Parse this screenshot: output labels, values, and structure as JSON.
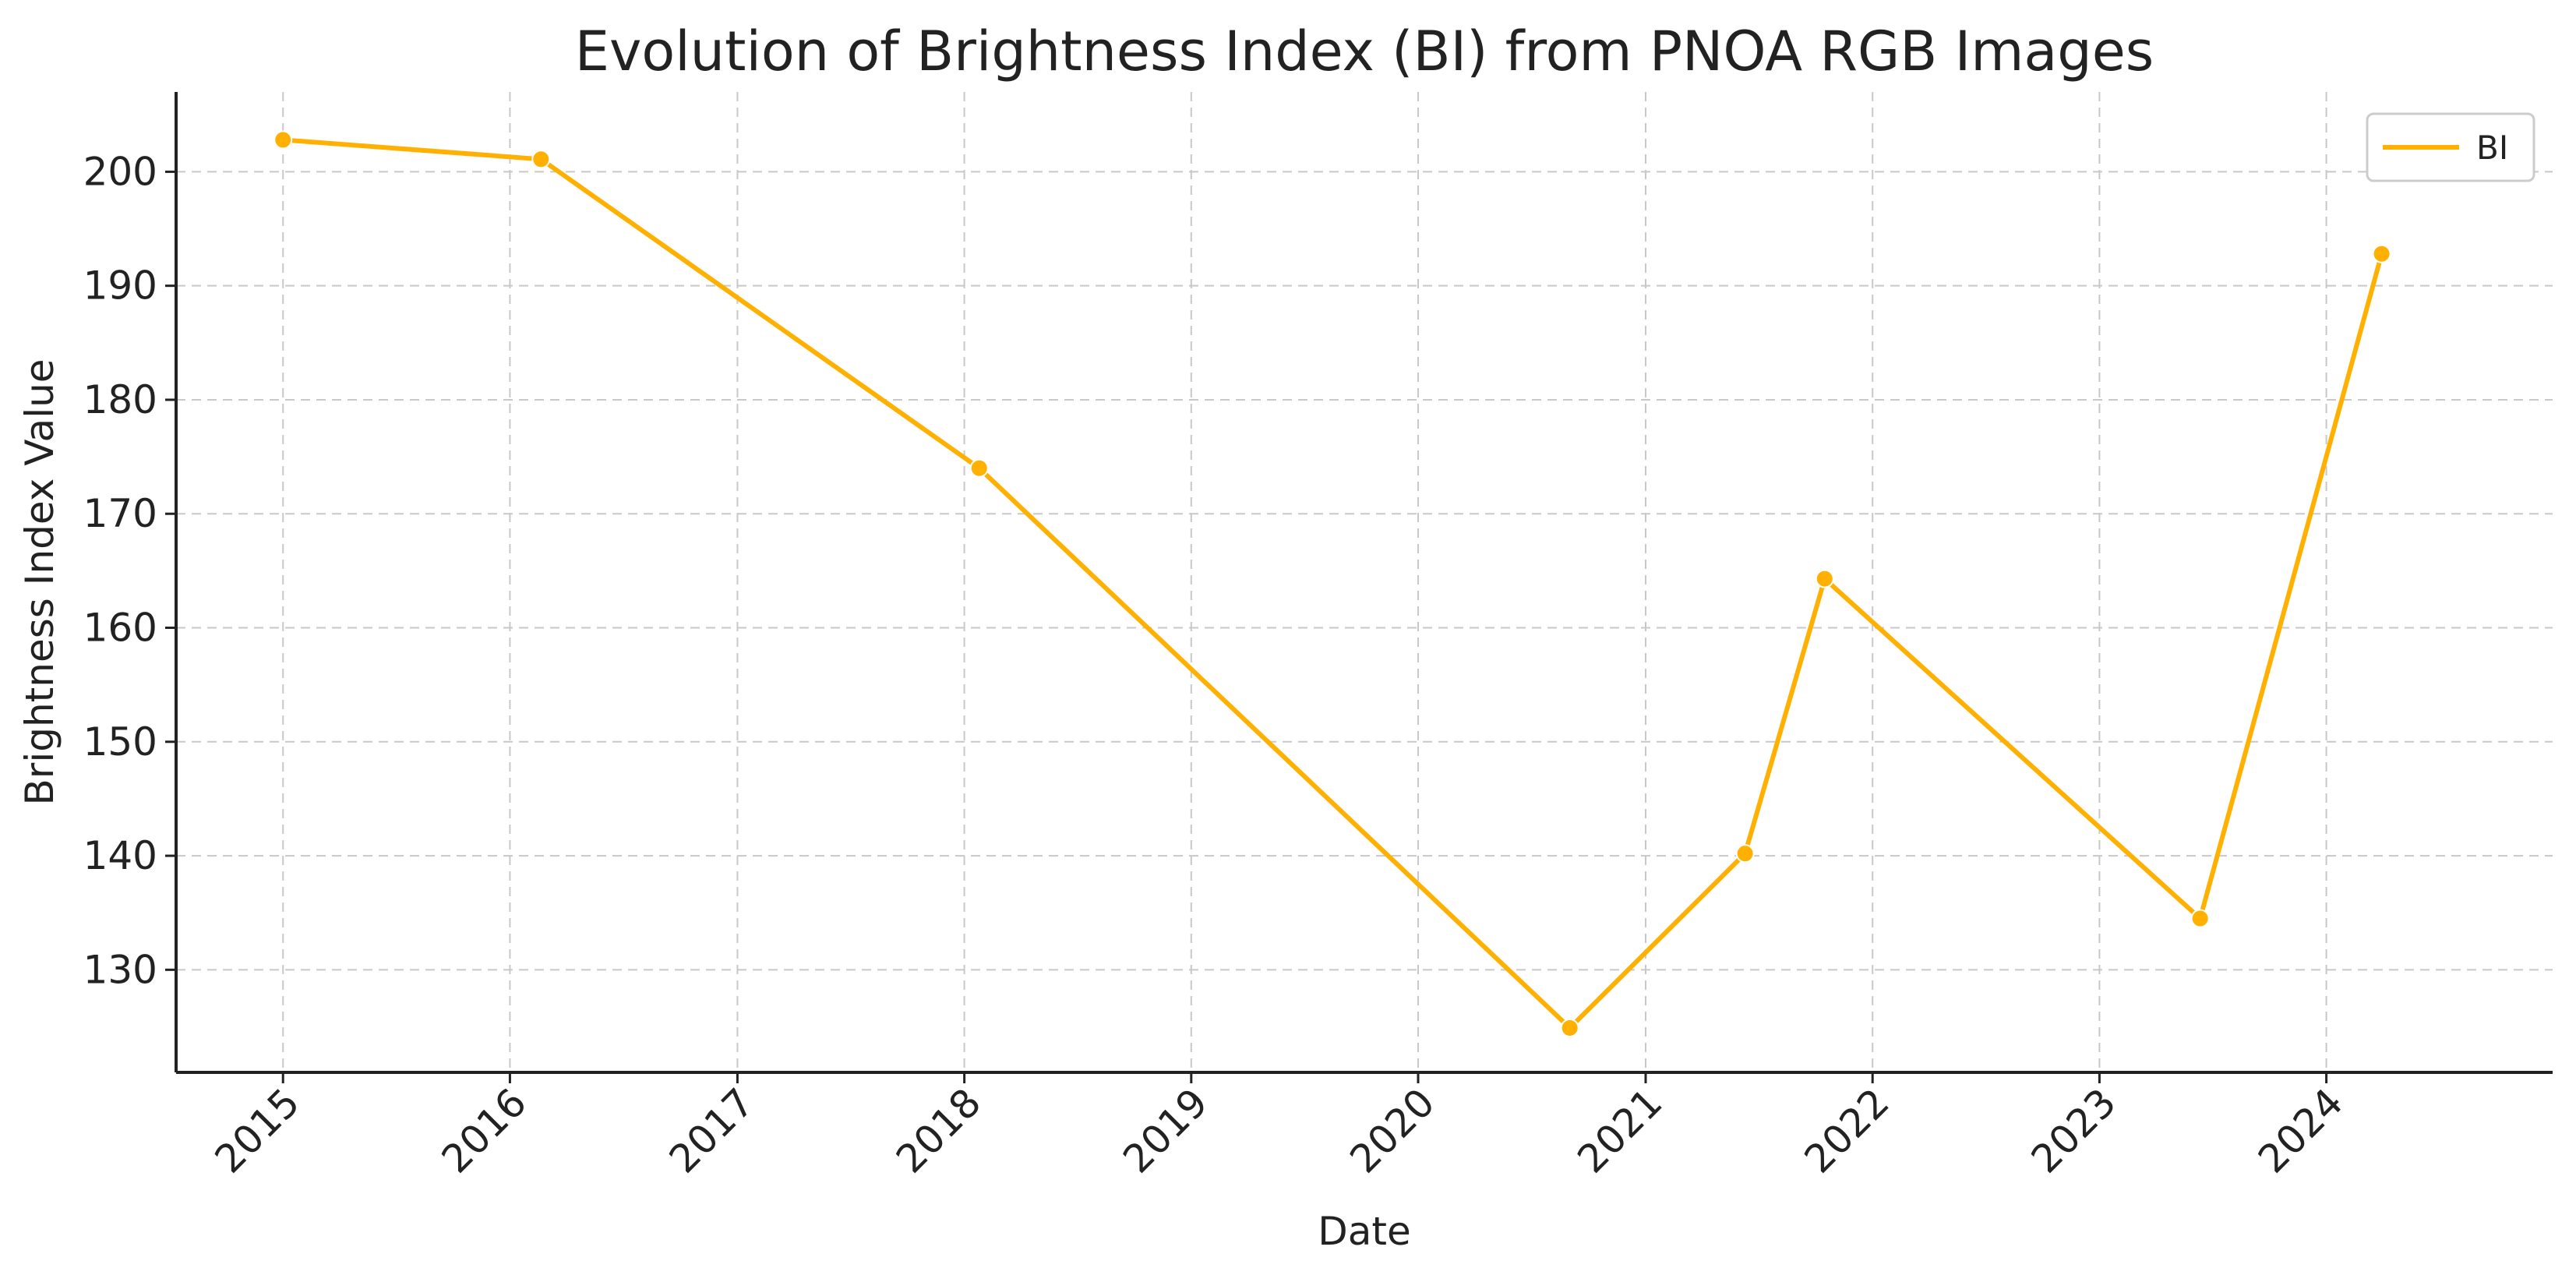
{
  "chart_data": {
    "type": "line",
    "title": "Evolution of Brightness Index (BI) from PNOA RGB Images",
    "xlabel": "Date",
    "ylabel": "Brightness Index Value",
    "x_ticks": [
      "2015",
      "2016",
      "2017",
      "2018",
      "2019",
      "2020",
      "2021",
      "2022",
      "2023",
      "2024"
    ],
    "y_ticks": [
      130,
      140,
      150,
      160,
      170,
      180,
      190,
      200
    ],
    "xlim": [
      "2014-07-13",
      "2024-12-30"
    ],
    "ylim": [
      121,
      207
    ],
    "grid": true,
    "legend_position": "top-right",
    "series": [
      {
        "name": "BI",
        "color": "#FFB000",
        "marker": "circle",
        "points": [
          {
            "x": "2015-01-01",
            "y": 202.8
          },
          {
            "x": "2016-02-20",
            "y": 201.1
          },
          {
            "x": "2018-01-25",
            "y": 174.0
          },
          {
            "x": "2020-09-01",
            "y": 124.9
          },
          {
            "x": "2021-06-10",
            "y": 140.2
          },
          {
            "x": "2021-10-16",
            "y": 164.3
          },
          {
            "x": "2023-06-12",
            "y": 134.5
          },
          {
            "x": "2024-03-30",
            "y": 192.8
          }
        ]
      }
    ]
  }
}
